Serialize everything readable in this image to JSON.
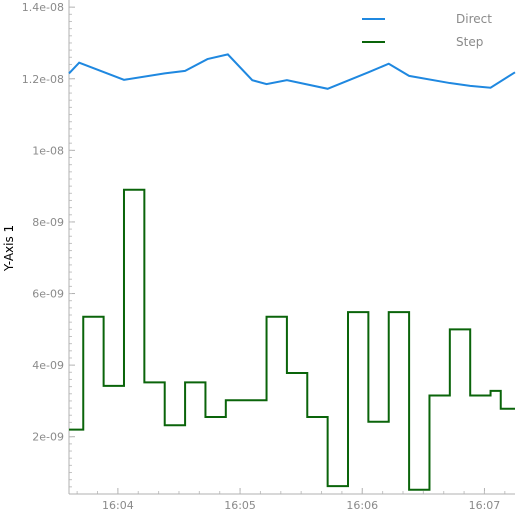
{
  "chart_data": {
    "type": "line",
    "title": "",
    "xlabel": "",
    "ylabel": "Y-Axis 1",
    "grid": false,
    "legend_position": "top-right",
    "xlim": [
      "16:03:36",
      "16:07:15"
    ],
    "ylim": [
      4e-10,
      1.42e-08
    ],
    "x_ticks": [
      "16:04",
      "16:05",
      "16:06",
      "16:07"
    ],
    "y_ticks": [
      "2e-09",
      "4e-09",
      "6e-09",
      "8e-09",
      "1e-08",
      "1.2e-08",
      "1.4e-08"
    ],
    "series": [
      {
        "name": "Direct",
        "color": "#1f88e0",
        "style": "line",
        "x": [
          "16:03:36",
          "16:03:41",
          "16:04:03",
          "16:04:23",
          "16:04:33",
          "16:04:44",
          "16:04:54",
          "16:05:06",
          "16:05:13",
          "16:05:23",
          "16:05:43",
          "16:06:03",
          "16:06:13",
          "16:06:23",
          "16:06:43",
          "16:06:53",
          "16:07:03",
          "16:07:15"
        ],
        "values": [
          1.215e-08,
          1.245e-08,
          1.197e-08,
          1.215e-08,
          1.222e-08,
          1.255e-08,
          1.268e-08,
          1.196e-08,
          1.185e-08,
          1.196e-08,
          1.172e-08,
          1.218e-08,
          1.242e-08,
          1.208e-08,
          1.188e-08,
          1.18e-08,
          1.175e-08,
          1.218e-08
        ]
      },
      {
        "name": "Step",
        "color": "#0a640a",
        "style": "step-post",
        "x": [
          "16:03:36",
          "16:03:43",
          "16:03:53",
          "16:04:03",
          "16:04:13",
          "16:04:23",
          "16:04:33",
          "16:04:43",
          "16:04:53",
          "16:05:03",
          "16:05:13",
          "16:05:23",
          "16:05:33",
          "16:05:43",
          "16:05:53",
          "16:06:03",
          "16:06:13",
          "16:06:23",
          "16:06:33",
          "16:06:43",
          "16:06:53",
          "16:07:03",
          "16:07:08",
          "16:07:15"
        ],
        "values": [
          2.2e-09,
          5.35e-09,
          3.42e-09,
          8.9e-09,
          3.52e-09,
          2.32e-09,
          3.52e-09,
          2.55e-09,
          3.02e-09,
          3.02e-09,
          5.35e-09,
          3.78e-09,
          2.55e-09,
          6.2e-10,
          5.48e-09,
          2.42e-09,
          5.48e-09,
          5.2e-10,
          3.15e-09,
          5e-09,
          3.15e-09,
          3.28e-09,
          2.78e-09,
          2.78e-09
        ]
      }
    ]
  }
}
